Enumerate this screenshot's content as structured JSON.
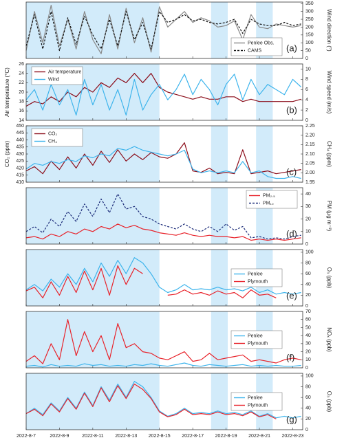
{
  "chart_data": [
    {
      "type": "line",
      "panel_label": "(a)",
      "y_axis_side": "right",
      "ylabel": "Wind direction (°)",
      "xlim": [
        7,
        23.6
      ],
      "ylim": [
        0,
        360
      ],
      "yticks": [
        0,
        50,
        100,
        150,
        200,
        250,
        300,
        350
      ],
      "highlight_spans": [
        [
          7,
          15
        ],
        [
          18.1,
          19.1
        ],
        [
          20.8,
          21.8
        ]
      ],
      "highlight_color": "#d2ebfa",
      "legend": "bottom right",
      "x": [
        7,
        7.5,
        8,
        8.5,
        9,
        9.5,
        10,
        10.5,
        11,
        11.5,
        12,
        12.5,
        13,
        13.5,
        14,
        14.5,
        15,
        15.5,
        16,
        16.5,
        17,
        17.5,
        18,
        18.5,
        19,
        19.5,
        20,
        20.5,
        21,
        21.5,
        22,
        22.5,
        23,
        23.5
      ],
      "series": [
        {
          "name": "Penlee Obs.",
          "color": "#888888",
          "dash": false,
          "values": [
            50,
            300,
            100,
            340,
            80,
            250,
            60,
            300,
            120,
            30,
            280,
            60,
            320,
            100,
            260,
            40,
            330,
            200,
            250,
            300,
            230,
            260,
            240,
            200,
            210,
            240,
            120,
            280,
            200,
            190,
            220,
            210,
            200,
            210
          ]
        },
        {
          "name": "CAMS",
          "color": "#111111",
          "dash": true,
          "values": [
            80,
            280,
            60,
            300,
            50,
            260,
            90,
            270,
            150,
            60,
            250,
            80,
            300,
            120,
            230,
            60,
            300,
            230,
            250,
            280,
            240,
            250,
            230,
            220,
            230,
            250,
            160,
            250,
            220,
            210,
            210,
            230,
            210,
            220
          ]
        }
      ]
    },
    {
      "type": "line",
      "panel_label": "(b)",
      "ylabel": "Air temperature (°C)",
      "y2label": "Wind speed (m/s)",
      "xlim": [
        7,
        23.6
      ],
      "ylim": [
        14,
        26
      ],
      "yticks": [
        14,
        16,
        18,
        20,
        22,
        24,
        26
      ],
      "y2lim": [
        0,
        11
      ],
      "y2ticks": [
        0,
        2,
        4,
        6,
        8,
        10
      ],
      "highlight_spans": [
        [
          7,
          15
        ],
        [
          18.1,
          19.1
        ],
        [
          20.8,
          21.8
        ]
      ],
      "highlight_color": "#d2ebfa",
      "legend": "top left",
      "x": [
        7,
        7.5,
        8,
        8.5,
        9,
        9.5,
        10,
        10.5,
        11,
        11.5,
        12,
        12.5,
        13,
        13.5,
        14,
        14.5,
        15,
        15.5,
        16,
        16.5,
        17,
        17.5,
        18,
        18.5,
        19,
        19.5,
        20,
        20.5,
        21,
        21.5,
        22,
        22.5,
        23,
        23.5
      ],
      "series": [
        {
          "name": "Air temperature",
          "color": "#8b0d1a",
          "dash": false,
          "values": [
            17,
            18,
            17.5,
            19,
            18,
            20,
            19,
            21,
            20,
            22,
            21,
            23,
            22,
            24,
            22,
            24,
            21,
            20,
            19.5,
            19,
            18.5,
            19,
            18.5,
            18.5,
            19,
            19,
            18,
            18.5,
            18,
            18,
            18,
            18,
            18,
            18.5
          ]
        },
        {
          "name": "Wind",
          "color": "#3db4ec",
          "dash": false,
          "axis": "y2",
          "values": [
            4,
            6,
            2,
            7,
            3,
            6,
            1,
            8,
            3,
            7,
            2,
            6,
            1,
            8,
            2,
            5,
            7,
            4,
            6,
            9,
            5,
            8,
            6,
            3,
            7,
            9,
            4,
            8,
            5,
            7,
            6,
            5,
            8,
            6.5
          ]
        }
      ]
    },
    {
      "type": "line",
      "panel_label": "(c)",
      "ylabel": "CO₂ (ppm)",
      "y2label": "CH₄ (ppm)",
      "xlim": [
        7,
        23.6
      ],
      "ylim": [
        410,
        450
      ],
      "yticks": [
        410,
        415,
        420,
        425,
        430,
        435,
        440,
        445,
        450
      ],
      "y2lim": [
        1.95,
        2.25
      ],
      "y2ticks": [
        1.95,
        {
          "value": 2.0,
          "label": "2.00"
        },
        2.05,
        {
          "value": 2.1,
          "label": "2.10"
        },
        2.15,
        {
          "value": 2.2,
          "label": "2.20"
        },
        2.25
      ],
      "highlight_spans": [
        [
          7,
          15
        ],
        [
          18.1,
          19.1
        ],
        [
          20.8,
          21.8
        ]
      ],
      "highlight_color": "#d2ebfa",
      "legend": "top left",
      "x": [
        7,
        7.5,
        8,
        8.5,
        9,
        9.5,
        10,
        10.5,
        11,
        11.5,
        12,
        12.5,
        13,
        13.5,
        14,
        14.5,
        15,
        15.5,
        16,
        16.5,
        17,
        17.5,
        18,
        18.5,
        19,
        19.5,
        20,
        20.5,
        21,
        21.5,
        22,
        22.5,
        23,
        23.5
      ],
      "series": [
        {
          "name": "CO₂",
          "color": "#8b0d1a",
          "dash": false,
          "values": [
            418,
            421,
            416,
            425,
            419,
            428,
            420,
            430,
            422,
            432,
            424,
            433,
            425,
            430,
            426,
            431,
            428,
            427,
            430,
            438,
            418,
            417,
            420,
            416,
            417,
            416,
            433,
            416,
            417,
            418,
            416,
            417,
            418,
            419
          ]
        },
        {
          "name": "CH₄",
          "color": "#3db4ec",
          "dash": false,
          "axis": "y2",
          "values": [
            2.02,
            2.05,
            2.04,
            2.06,
            2.05,
            2.07,
            2.06,
            2.09,
            2.08,
            2.1,
            2.09,
            2.13,
            2.12,
            2.14,
            2.12,
            2.11,
            2.1,
            2.09,
            2.1,
            2.12,
            2.02,
            2.0,
            2.01,
            2.0,
            2.01,
            2.0,
            2.06,
            2.0,
            2.01,
            1.98,
            1.97,
            1.97,
            1.98,
            1.97
          ]
        }
      ]
    },
    {
      "type": "line",
      "panel_label": "(d)",
      "y_axis_side": "right",
      "ylabel": "PM (μg m⁻³)",
      "xlim": [
        7,
        23.6
      ],
      "ylim": [
        0,
        45
      ],
      "yticks": [
        0,
        10,
        20,
        30,
        40
      ],
      "highlight_spans": [
        [
          7,
          15
        ],
        [
          18.1,
          19.1
        ],
        [
          20.8,
          21.8
        ]
      ],
      "highlight_color": "#d2ebfa",
      "legend": "top right",
      "x": [
        7,
        7.5,
        8,
        8.5,
        9,
        9.5,
        10,
        10.5,
        11,
        11.5,
        12,
        12.5,
        13,
        13.5,
        14,
        14.5,
        15,
        15.5,
        16,
        16.5,
        17,
        17.5,
        18,
        18.5,
        19,
        19.5,
        20,
        20.5,
        21,
        21.5,
        22,
        22.5,
        23,
        23.5
      ],
      "series": [
        {
          "name": "PM₂.₅",
          "color": "#e8222a",
          "dash": false,
          "values": [
            5,
            6,
            4,
            8,
            6,
            10,
            8,
            12,
            10,
            14,
            12,
            16,
            13,
            15,
            12,
            11,
            9,
            8,
            7,
            9,
            7,
            6,
            7,
            6,
            6,
            5,
            6,
            3,
            4,
            3,
            4,
            3,
            4,
            5
          ]
        },
        {
          "name": "PM₁₀",
          "color": "#1a2a78",
          "dash": true,
          "values": [
            10,
            14,
            9,
            20,
            14,
            26,
            18,
            32,
            22,
            36,
            25,
            40,
            28,
            30,
            22,
            20,
            16,
            14,
            12,
            16,
            12,
            10,
            14,
            10,
            16,
            11,
            14,
            5,
            6,
            4,
            5,
            4,
            6,
            7
          ]
        }
      ]
    },
    {
      "type": "line",
      "panel_label": "(e)",
      "y_axis_side": "right",
      "ylabel": "O₃ (ppb)",
      "xlim": [
        7,
        23.6
      ],
      "ylim": [
        0,
        105
      ],
      "yticks": [
        0,
        20,
        40,
        60,
        80,
        100
      ],
      "highlight_spans": [
        [
          7,
          15
        ],
        [
          18.1,
          19.1
        ],
        [
          20.8,
          21.8
        ]
      ],
      "highlight_color": "#d2ebfa",
      "legend": "right",
      "x": [
        7,
        7.5,
        8,
        8.5,
        9,
        9.5,
        10,
        10.5,
        11,
        11.5,
        12,
        12.5,
        13,
        13.5,
        14,
        14.5,
        15,
        15.5,
        16,
        16.5,
        17,
        17.5,
        18,
        18.5,
        19,
        19.5,
        20,
        20.5,
        21,
        21.5,
        22,
        22.5,
        23,
        23.5
      ],
      "series": [
        {
          "name": "Penlee",
          "color": "#3db4ec",
          "dash": false,
          "values": [
            30,
            40,
            28,
            50,
            35,
            60,
            40,
            70,
            45,
            80,
            55,
            85,
            60,
            90,
            80,
            60,
            35,
            25,
            30,
            40,
            30,
            32,
            30,
            35,
            30,
            32,
            28,
            35,
            25,
            30,
            22,
            25,
            22,
            25
          ]
        },
        {
          "name": "Plymouth",
          "color": "#e8222a",
          "dash": false,
          "values": [
            28,
            35,
            15,
            45,
            20,
            55,
            25,
            65,
            30,
            70,
            20,
            75,
            40,
            70,
            60,
            null,
            null,
            20,
            22,
            30,
            22,
            25,
            20,
            28,
            22,
            25,
            15,
            30,
            20,
            22,
            15,
            null,
            null,
            null
          ]
        }
      ]
    },
    {
      "type": "line",
      "panel_label": "(f)",
      "y_axis_side": "right",
      "ylabel": "NOₓ (ppb)",
      "xlim": [
        7,
        23.6
      ],
      "ylim": [
        0,
        70
      ],
      "yticks": [
        0,
        10,
        20,
        30,
        40,
        50,
        60,
        70
      ],
      "highlight_spans": [
        [
          7,
          15
        ],
        [
          18.1,
          19.1
        ],
        [
          20.8,
          21.8
        ]
      ],
      "highlight_color": "#d2ebfa",
      "legend": "right",
      "x": [
        7,
        7.5,
        8,
        8.5,
        9,
        9.5,
        10,
        10.5,
        11,
        11.5,
        12,
        12.5,
        13,
        13.5,
        14,
        14.5,
        15,
        15.5,
        16,
        16.5,
        17,
        17.5,
        18,
        18.5,
        19,
        19.5,
        20,
        20.5,
        21,
        21.5,
        22,
        22.5,
        23,
        23.5
      ],
      "series": [
        {
          "name": "Penlee",
          "color": "#3db4ec",
          "dash": false,
          "values": [
            2,
            3,
            1,
            4,
            2,
            3,
            2,
            5,
            3,
            4,
            2,
            3,
            2,
            4,
            3,
            5,
            3,
            2,
            4,
            6,
            3,
            2,
            4,
            3,
            2,
            3,
            4,
            2,
            3,
            2,
            3,
            2,
            2,
            3
          ]
        },
        {
          "name": "Plymouth",
          "color": "#e8222a",
          "dash": false,
          "values": [
            8,
            15,
            5,
            30,
            10,
            60,
            15,
            45,
            20,
            40,
            10,
            55,
            25,
            30,
            20,
            18,
            12,
            10,
            15,
            20,
            8,
            10,
            18,
            10,
            12,
            14,
            16,
            8,
            10,
            8,
            6,
            10,
            12,
            10
          ]
        }
      ]
    },
    {
      "type": "line",
      "panel_label": "(g)",
      "y_axis_side": "right",
      "ylabel": "O₃ (ppb)",
      "xlim": [
        7,
        23.6
      ],
      "ylim": [
        0,
        105
      ],
      "yticks": [
        0,
        20,
        40,
        60,
        80,
        100
      ],
      "xticks": [
        {
          "value": 7,
          "label": "2022-8-7"
        },
        {
          "value": 9,
          "label": "2022-8-9"
        },
        {
          "value": 11,
          "label": "2022-8-11"
        },
        {
          "value": 13,
          "label": "2022-8-13"
        },
        {
          "value": 15,
          "label": "2022-8-15"
        },
        {
          "value": 17,
          "label": "2022-8-17"
        },
        {
          "value": 19,
          "label": "2022-8-19"
        },
        {
          "value": 21,
          "label": "2022-8-21"
        },
        {
          "value": 23,
          "label": "2022-8-23"
        }
      ],
      "highlight_spans": [
        [
          7,
          15
        ],
        [
          18.1,
          19.1
        ],
        [
          20.8,
          21.8
        ]
      ],
      "highlight_color": "#d2ebfa",
      "legend": "right",
      "x": [
        7,
        7.5,
        8,
        8.5,
        9,
        9.5,
        10,
        10.5,
        11,
        11.5,
        12,
        12.5,
        13,
        13.5,
        14,
        14.5,
        15,
        15.5,
        16,
        16.5,
        17,
        17.5,
        18,
        18.5,
        19,
        19.5,
        20,
        20.5,
        21,
        21.5,
        22,
        22.5,
        23,
        23.5
      ],
      "series": [
        {
          "name": "Penlee",
          "color": "#3db4ec",
          "dash": false,
          "values": [
            30,
            40,
            28,
            50,
            35,
            60,
            40,
            70,
            45,
            80,
            55,
            85,
            60,
            90,
            80,
            60,
            35,
            25,
            30,
            40,
            30,
            32,
            30,
            35,
            30,
            32,
            28,
            35,
            25,
            30,
            22,
            25,
            22,
            25
          ]
        },
        {
          "name": "Plymouth",
          "color": "#e8222a",
          "dash": false,
          "values": [
            30,
            38,
            26,
            48,
            33,
            58,
            38,
            68,
            43,
            78,
            52,
            82,
            58,
            85,
            75,
            58,
            33,
            24,
            28,
            38,
            28,
            30,
            28,
            33,
            28,
            30,
            26,
            33,
            24,
            28,
            20,
            null,
            null,
            null
          ]
        }
      ]
    }
  ]
}
